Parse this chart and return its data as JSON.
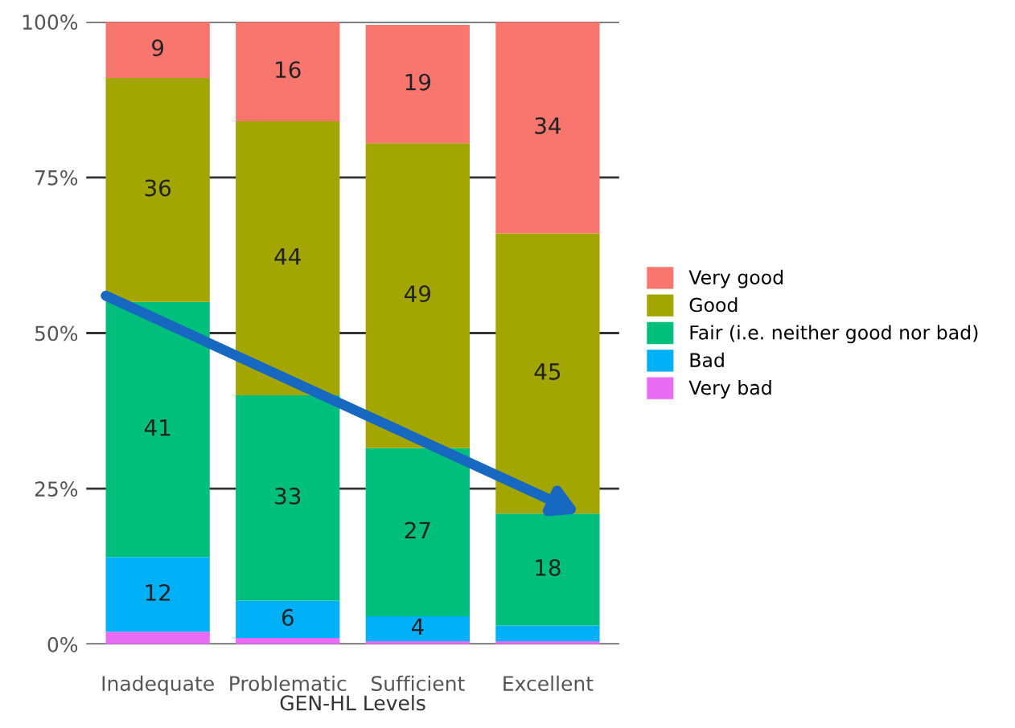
{
  "chart_data": {
    "type": "bar",
    "stacked": true,
    "xlabel": "GEN-HL Levels",
    "categories": [
      "Inadequate",
      "Problematic",
      "Sufficient",
      "Excellent"
    ],
    "series": [
      {
        "name": "Very bad",
        "color": "#e76bf3",
        "values": [
          2,
          1,
          0.5,
          0.5
        ],
        "value_labels": [
          null,
          null,
          null,
          null
        ]
      },
      {
        "name": "Bad",
        "color": "#00b0f6",
        "values": [
          12,
          6,
          4,
          2.5
        ],
        "value_labels": [
          "12",
          "6",
          "4",
          null
        ]
      },
      {
        "name": "Fair (i.e. neither good nor bad)",
        "color": "#00bf7d",
        "values": [
          41,
          33,
          27,
          18
        ],
        "value_labels": [
          "41",
          "33",
          "27",
          "18"
        ]
      },
      {
        "name": "Good",
        "color": "#a3a500",
        "values": [
          36,
          44,
          49,
          45
        ],
        "value_labels": [
          "36",
          "44",
          "49",
          "45"
        ]
      },
      {
        "name": "Very good",
        "color": "#f8766d",
        "values": [
          9,
          16,
          19,
          34
        ],
        "value_labels": [
          "9",
          "16",
          "19",
          "34"
        ]
      }
    ],
    "ylim": [
      0,
      100
    ],
    "yticks": [
      {
        "value": 0,
        "label": "0%"
      },
      {
        "value": 25,
        "label": "25%"
      },
      {
        "value": 50,
        "label": "50%"
      },
      {
        "value": 75,
        "label": "75%"
      },
      {
        "value": 100,
        "label": "100%"
      }
    ],
    "grid": "y",
    "legend": "right"
  }
}
